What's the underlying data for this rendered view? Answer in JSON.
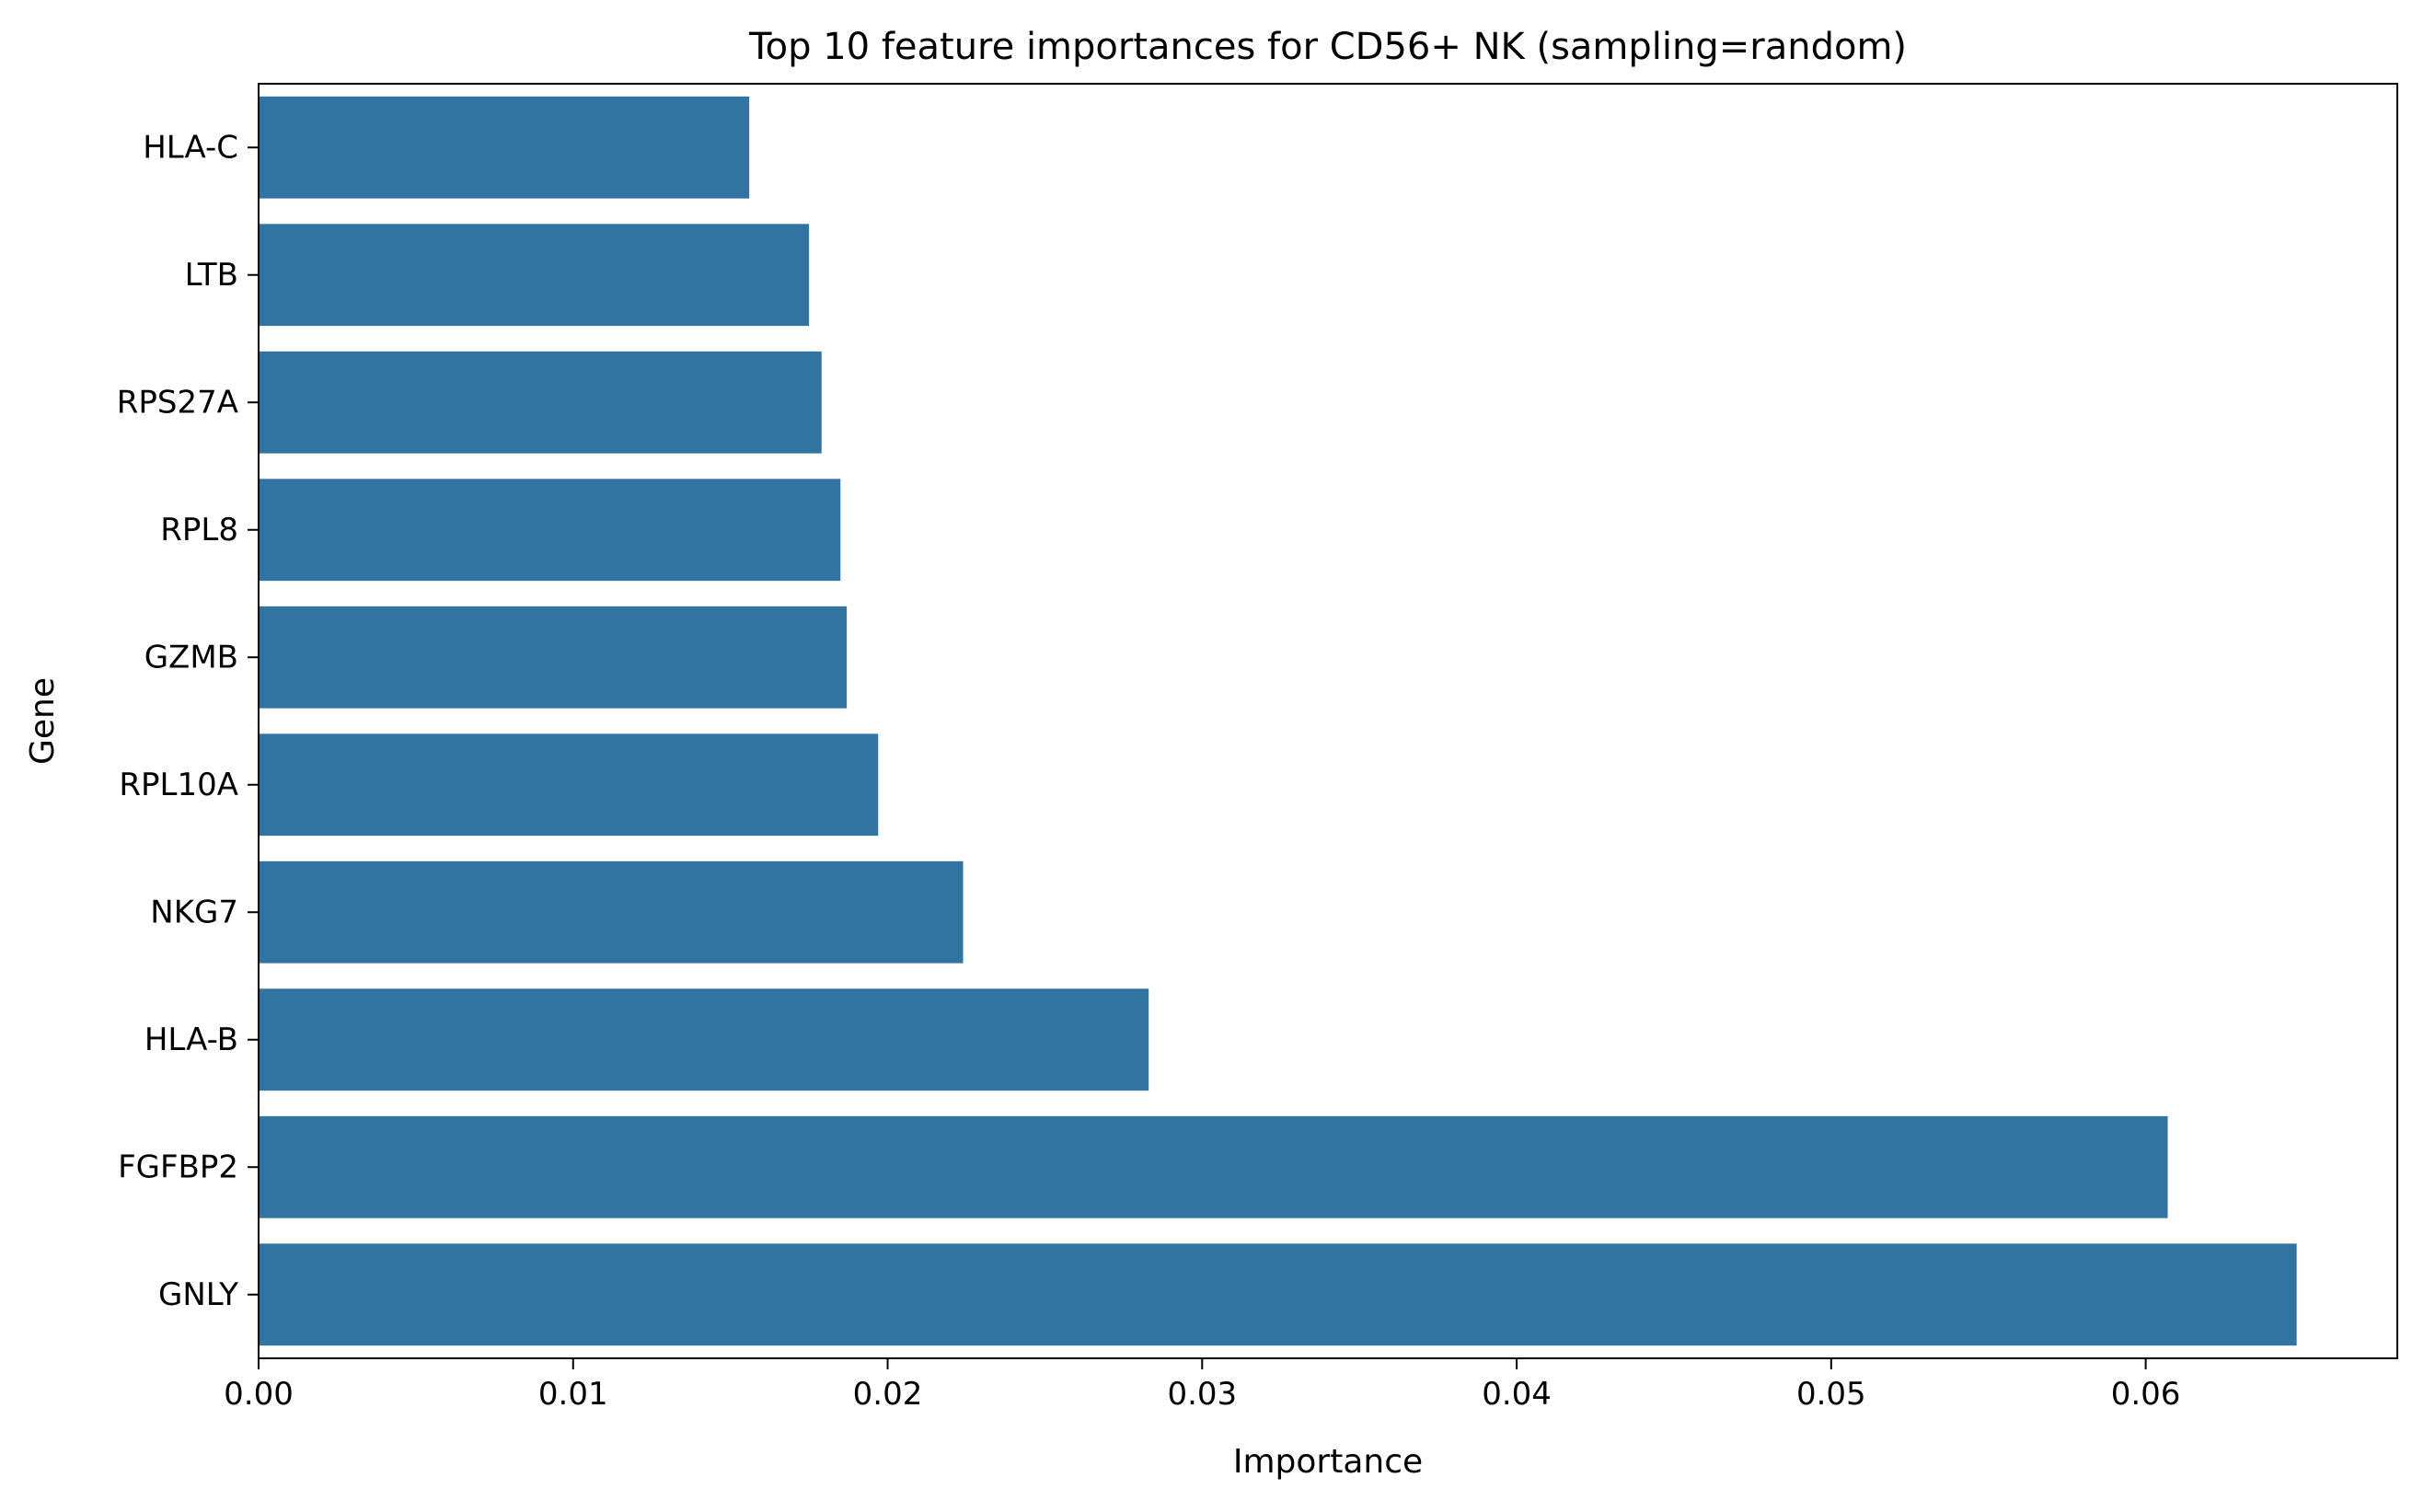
{
  "chart_data": {
    "type": "bar",
    "orientation": "horizontal",
    "title": "Top 10 feature importances for CD56+ NK (sampling=random)",
    "xlabel": "Importance",
    "ylabel": "Gene",
    "categories": [
      "HLA-C",
      "LTB",
      "RPS27A",
      "RPL8",
      "GZMB",
      "RPL10A",
      "NKG7",
      "HLA-B",
      "FGFBP2",
      "GNLY"
    ],
    "values": [
      0.0156,
      0.0175,
      0.0179,
      0.0185,
      0.0187,
      0.0197,
      0.0224,
      0.0283,
      0.0607,
      0.0648
    ],
    "xlim": [
      0,
      0.068
    ],
    "xticks": [
      0.0,
      0.01,
      0.02,
      0.03,
      0.04,
      0.05,
      0.06
    ],
    "xtick_labels": [
      "0.00",
      "0.01",
      "0.02",
      "0.03",
      "0.04",
      "0.05",
      "0.06"
    ],
    "bar_color": "#3274a1",
    "grid": false,
    "legend": "none"
  }
}
